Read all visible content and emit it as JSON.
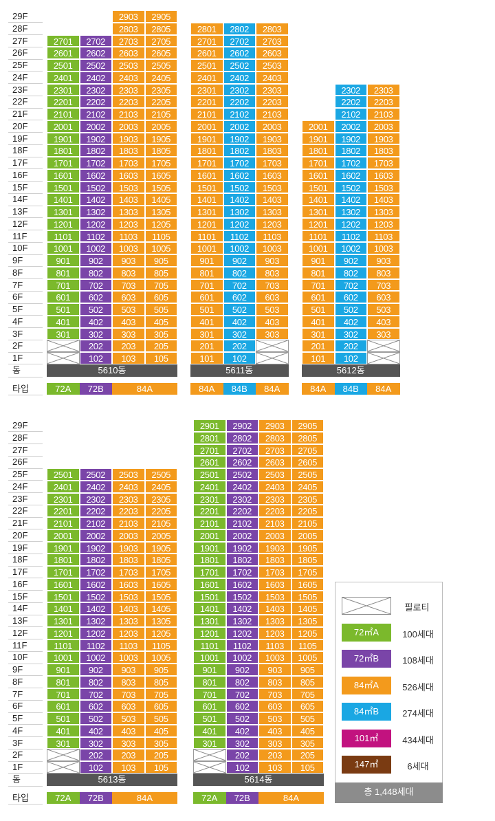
{
  "floor_labels": [
    "29F",
    "28F",
    "27F",
    "26F",
    "25F",
    "24F",
    "23F",
    "22F",
    "21F",
    "20F",
    "19F",
    "18F",
    "17F",
    "16F",
    "15F",
    "14F",
    "13F",
    "12F",
    "11F",
    "10F",
    "9F",
    "8F",
    "7F",
    "6F",
    "5F",
    "4F",
    "3F",
    "2F",
    "1F"
  ],
  "dong_row_label": "동",
  "type_row_label": "타입",
  "buildings": [
    {
      "name": "5610동",
      "columns": [
        {
          "line": "01",
          "type": "72A",
          "color": "#7bb92c",
          "top_floor": 27,
          "piloti_floors": [
            1,
            2
          ]
        },
        {
          "line": "02",
          "type": "72B",
          "color": "#7a45a8",
          "top_floor": 27,
          "piloti_floors": []
        },
        {
          "line": "03",
          "type": "84A",
          "color": "#f39a1c",
          "top_floor": 29,
          "piloti_floors": []
        },
        {
          "line": "05",
          "type": "84A",
          "color": "#f39a1c",
          "top_floor": 29,
          "piloti_floors": []
        }
      ],
      "type_labels": [
        {
          "text": "72A",
          "color": "#7bb92c"
        },
        {
          "text": "72B",
          "color": "#7a45a8"
        },
        {
          "text": "84A",
          "color": "#f39a1c"
        }
      ]
    },
    {
      "name": "5611동",
      "columns": [
        {
          "line": "01",
          "type": "84A",
          "color": "#f39a1c",
          "top_floor": 28,
          "piloti_floors": []
        },
        {
          "line": "02",
          "type": "84B",
          "color": "#1aa7e3",
          "top_floor": 28,
          "piloti_floors": []
        },
        {
          "line": "03",
          "type": "84A",
          "color": "#f39a1c",
          "top_floor": 28,
          "piloti_floors": [
            1,
            2
          ]
        }
      ],
      "type_labels": [
        {
          "text": "84A",
          "color": "#f39a1c"
        },
        {
          "text": "84B",
          "color": "#1aa7e3"
        },
        {
          "text": "84A",
          "color": "#f39a1c"
        }
      ]
    },
    {
      "name": "5612동",
      "columns": [
        {
          "line": "01",
          "type": "84A",
          "color": "#f39a1c",
          "top_floor": 20,
          "piloti_floors": []
        },
        {
          "line": "02",
          "type": "84B",
          "color": "#1aa7e3",
          "top_floor": 23,
          "piloti_floors": []
        },
        {
          "line": "03",
          "type": "84A",
          "color": "#f39a1c",
          "top_floor": 23,
          "piloti_floors": [
            1,
            2
          ]
        }
      ],
      "type_labels": [
        {
          "text": "84A",
          "color": "#f39a1c"
        },
        {
          "text": "84B",
          "color": "#1aa7e3"
        },
        {
          "text": "84A",
          "color": "#f39a1c"
        }
      ]
    },
    {
      "name": "5613동",
      "columns": [
        {
          "line": "01",
          "type": "72A",
          "color": "#7bb92c",
          "top_floor": 25,
          "piloti_floors": [
            1,
            2
          ]
        },
        {
          "line": "02",
          "type": "72B",
          "color": "#7a45a8",
          "top_floor": 25,
          "piloti_floors": []
        },
        {
          "line": "03",
          "type": "84A",
          "color": "#f39a1c",
          "top_floor": 25,
          "piloti_floors": []
        },
        {
          "line": "05",
          "type": "84A",
          "color": "#f39a1c",
          "top_floor": 25,
          "piloti_floors": []
        }
      ],
      "type_labels": [
        {
          "text": "72A",
          "color": "#7bb92c"
        },
        {
          "text": "72B",
          "color": "#7a45a8"
        },
        {
          "text": "84A",
          "color": "#f39a1c"
        }
      ]
    },
    {
      "name": "5614동",
      "columns": [
        {
          "line": "01",
          "type": "72A",
          "color": "#7bb92c",
          "top_floor": 29,
          "piloti_floors": [
            1,
            2
          ]
        },
        {
          "line": "02",
          "type": "72B",
          "color": "#7a45a8",
          "top_floor": 29,
          "piloti_floors": []
        },
        {
          "line": "03",
          "type": "84A",
          "color": "#f39a1c",
          "top_floor": 29,
          "piloti_floors": []
        },
        {
          "line": "05",
          "type": "84A",
          "color": "#f39a1c",
          "top_floor": 29,
          "piloti_floors": []
        }
      ],
      "type_labels": [
        {
          "text": "72A",
          "color": "#7bb92c"
        },
        {
          "text": "72B",
          "color": "#7a45a8"
        },
        {
          "text": "84A",
          "color": "#f39a1c"
        }
      ]
    }
  ],
  "legend": {
    "items": [
      {
        "swatch": "piloti",
        "label": "필로티",
        "count": ""
      },
      {
        "swatch": "#7bb92c",
        "label": "72㎡A",
        "count": "100세대"
      },
      {
        "swatch": "#7a45a8",
        "label": "72㎡B",
        "count": "108세대"
      },
      {
        "swatch": "#f39a1c",
        "label": "84㎡A",
        "count": "526세대"
      },
      {
        "swatch": "#1aa7e3",
        "label": "84㎡B",
        "count": "274세대"
      },
      {
        "swatch": "#c2127f",
        "label": "101㎡",
        "count": "434세대"
      },
      {
        "swatch": "#7a3b12",
        "label": "147㎡",
        "count": "6세대"
      }
    ],
    "total": "총 1,448세대"
  }
}
